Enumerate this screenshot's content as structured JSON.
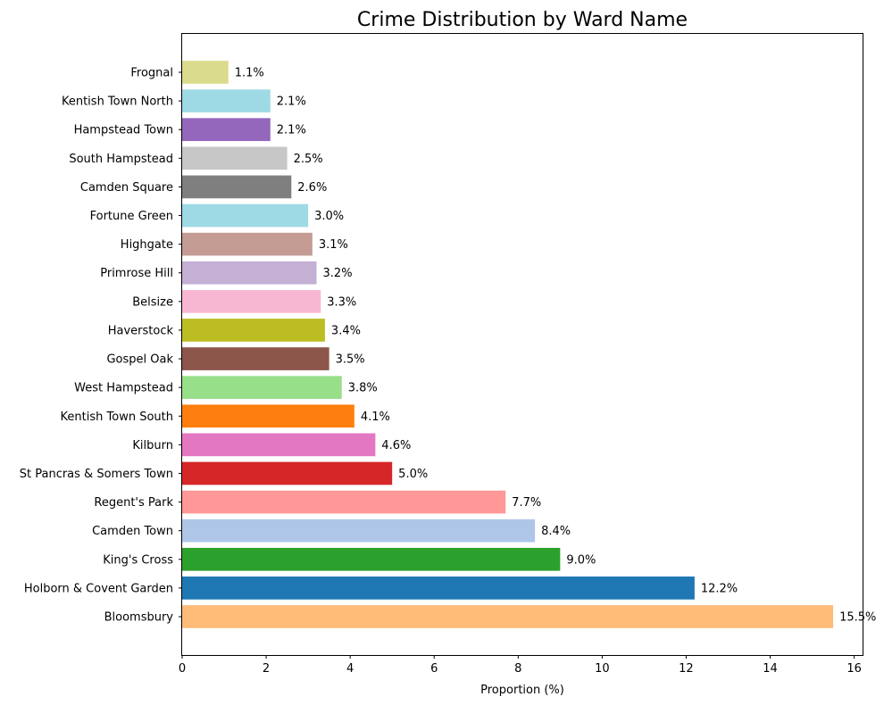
{
  "chart_data": {
    "type": "bar",
    "orientation": "horizontal",
    "title": "Crime Distribution by Ward Name",
    "xlabel": "Proportion (%)",
    "ylabel": "",
    "xlim": [
      0,
      16.2
    ],
    "xticks": [
      "0",
      "2",
      "4",
      "6",
      "8",
      "10",
      "12",
      "14",
      "16"
    ],
    "grid": false,
    "bars": [
      {
        "category": "Bloomsbury",
        "value": 15.5,
        "label": "15.5%",
        "color": "#ffbb78"
      },
      {
        "category": "Holborn & Covent Garden",
        "value": 12.2,
        "label": "12.2%",
        "color": "#1f77b4"
      },
      {
        "category": "King's Cross",
        "value": 9.0,
        "label": "9.0%",
        "color": "#2ca02c"
      },
      {
        "category": "Camden Town",
        "value": 8.4,
        "label": "8.4%",
        "color": "#aec7e8"
      },
      {
        "category": "Regent's Park",
        "value": 7.7,
        "label": "7.7%",
        "color": "#ff9896"
      },
      {
        "category": "St Pancras & Somers Town",
        "value": 5.0,
        "label": "5.0%",
        "color": "#d62728"
      },
      {
        "category": "Kilburn",
        "value": 4.6,
        "label": "4.6%",
        "color": "#e377c2"
      },
      {
        "category": "Kentish Town South",
        "value": 4.1,
        "label": "4.1%",
        "color": "#ff7f0e"
      },
      {
        "category": "West Hampstead",
        "value": 3.8,
        "label": "3.8%",
        "color": "#98df8a"
      },
      {
        "category": "Gospel Oak",
        "value": 3.5,
        "label": "3.5%",
        "color": "#8c564b"
      },
      {
        "category": "Haverstock",
        "value": 3.4,
        "label": "3.4%",
        "color": "#bcbd22"
      },
      {
        "category": "Belsize",
        "value": 3.3,
        "label": "3.3%",
        "color": "#f7b6d2"
      },
      {
        "category": "Primrose Hill",
        "value": 3.2,
        "label": "3.2%",
        "color": "#c5b0d5"
      },
      {
        "category": "Highgate",
        "value": 3.1,
        "label": "3.1%",
        "color": "#c49c94"
      },
      {
        "category": "Fortune Green",
        "value": 3.0,
        "label": "3.0%",
        "color": "#9edae5"
      },
      {
        "category": "Camden Square",
        "value": 2.6,
        "label": "2.6%",
        "color": "#7f7f7f"
      },
      {
        "category": "South Hampstead",
        "value": 2.5,
        "label": "2.5%",
        "color": "#c7c7c7"
      },
      {
        "category": "Hampstead Town",
        "value": 2.1,
        "label": "2.1%",
        "color": "#9467bd"
      },
      {
        "category": "Kentish Town North",
        "value": 2.1,
        "label": "2.1%",
        "color": "#9edae5"
      },
      {
        "category": "Frognal",
        "value": 1.1,
        "label": "1.1%",
        "color": "#dbdb8d"
      }
    ]
  }
}
